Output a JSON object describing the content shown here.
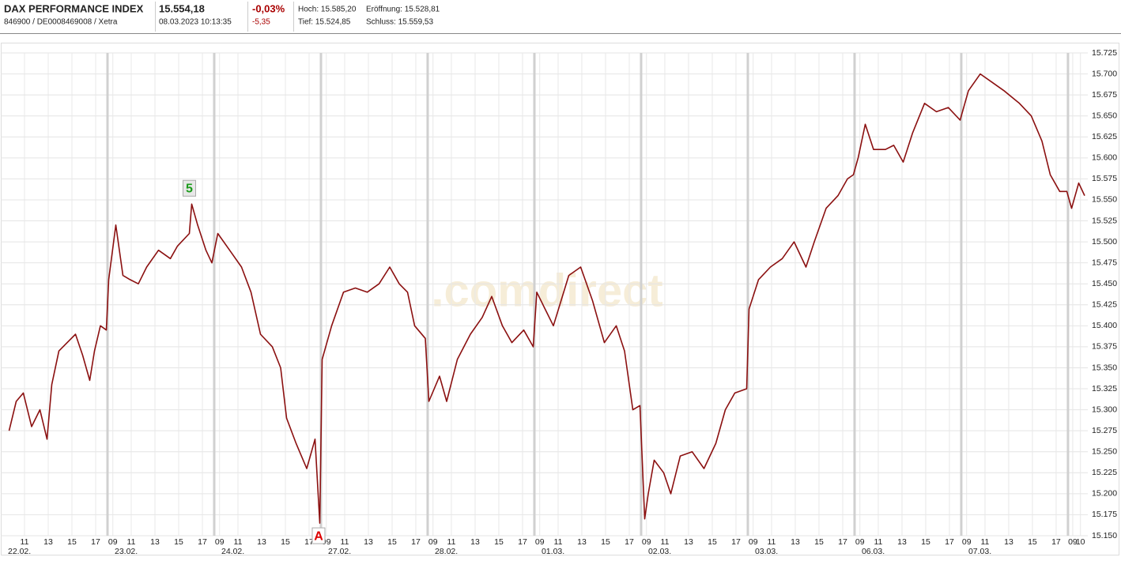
{
  "header": {
    "name": "DAX PERFORMANCE INDEX",
    "ids": "846900 / DE0008469008 / Xetra",
    "price": "15.554,18",
    "time": "08.03.2023 10:13:35",
    "change_pct": "-0,03%",
    "change_abs": "-5,35",
    "high": "Hoch: 15.585,20",
    "open": "Eröffnung: 15.528,81",
    "low": "Tief: 15.524,85",
    "close": "Schluss: 15.559,53"
  },
  "chart_data": {
    "type": "line",
    "watermark": ".comdirect",
    "color": "#8b1010",
    "x": [
      0.7,
      1.3,
      1.9,
      2.6,
      3.3,
      3.9,
      4.3,
      4.9,
      5.6,
      6.3,
      6.9,
      7.5,
      7.9,
      8.4,
      8.9,
      9.1,
      9.7,
      10.3,
      10.9,
      11.6,
      12.3,
      13.3,
      14.3,
      14.9,
      15.9,
      16.1,
      16.6,
      17.3,
      17.8,
      18.3,
      19.3,
      20.3,
      21.1,
      21.9,
      22.9,
      23.6,
      24.1,
      24.9,
      25.8,
      26.5,
      26.9,
      27.1,
      27.9,
      28.9,
      29.9,
      30.9,
      31.9,
      32.8,
      33.6,
      34.3,
      34.9,
      35.8,
      36.1,
      37,
      37.6,
      38.5,
      39.6,
      40.6,
      41.4,
      42.3,
      43.1,
      44.1,
      44.9,
      45.2,
      45.9,
      46.6,
      47.9,
      48.9,
      49.9,
      50.9,
      51.9,
      52.6,
      53.3,
      53.9,
      54.3,
      54.6,
      55.1,
      55.9,
      56.5,
      57.3,
      58.3,
      59.3,
      60.3,
      61.1,
      61.9,
      62.9,
      63.1,
      63.9,
      64.9,
      65.9,
      66.9,
      67.9,
      68.6,
      69.6,
      70.6,
      71.4,
      71.9,
      72.3,
      72.9,
      73.6,
      74.6,
      75.3,
      76.1,
      76.9,
      77.9,
      78.9,
      79.9,
      80.9,
      81.6,
      82.6,
      83.6,
      84.6,
      85.9,
      86.9,
      87.8,
      88.5,
      89.3,
      89.9,
      90.3,
      90.9,
      91.4
    ],
    "values": [
      15275,
      15310,
      15320,
      15280,
      15300,
      15265,
      15330,
      15370,
      15380,
      15390,
      15365,
      15335,
      15370,
      15400,
      15395,
      15455,
      15520,
      15460,
      15455,
      15450,
      15470,
      15490,
      15480,
      15495,
      15510,
      15545,
      15520,
      15490,
      15475,
      15510,
      15490,
      15470,
      15440,
      15390,
      15375,
      15350,
      15290,
      15260,
      15230,
      15265,
      15165,
      15360,
      15400,
      15440,
      15445,
      15440,
      15450,
      15470,
      15450,
      15440,
      15400,
      15385,
      15310,
      15340,
      15310,
      15360,
      15390,
      15410,
      15435,
      15400,
      15380,
      15395,
      15375,
      15440,
      15420,
      15400,
      15460,
      15470,
      15430,
      15380,
      15400,
      15370,
      15300,
      15305,
      15170,
      15200,
      15240,
      15225,
      15200,
      15245,
      15250,
      15230,
      15260,
      15300,
      15320,
      15325,
      15420,
      15455,
      15470,
      15480,
      15500,
      15470,
      15500,
      15540,
      15555,
      15575,
      15580,
      15600,
      15640,
      15610,
      15610,
      15615,
      15595,
      15630,
      15665,
      15655,
      15660,
      15645,
      15680,
      15700,
      15690,
      15680,
      15665,
      15650,
      15620,
      15580,
      15560,
      15560,
      15540,
      15570,
      15555
    ],
    "xlim": [
      0,
      91.67
    ],
    "ylim": [
      15150,
      15725
    ],
    "yticks": [
      {
        "value": 15150,
        "label": "15.150"
      },
      {
        "value": 15175,
        "label": "15.175"
      },
      {
        "value": 15200,
        "label": "15.200"
      },
      {
        "value": 15225,
        "label": "15.225"
      },
      {
        "value": 15250,
        "label": "15.250"
      },
      {
        "value": 15275,
        "label": "15.275"
      },
      {
        "value": 15300,
        "label": "15.300"
      },
      {
        "value": 15325,
        "label": "15.325"
      },
      {
        "value": 15350,
        "label": "15.350"
      },
      {
        "value": 15375,
        "label": "15.375"
      },
      {
        "value": 15400,
        "label": "15.400"
      },
      {
        "value": 15425,
        "label": "15.425"
      },
      {
        "value": 15450,
        "label": "15.450"
      },
      {
        "value": 15475,
        "label": "15.475"
      },
      {
        "value": 15500,
        "label": "15.500"
      },
      {
        "value": 15525,
        "label": "15.525"
      },
      {
        "value": 15550,
        "label": "15.550"
      },
      {
        "value": 15575,
        "label": "15.575"
      },
      {
        "value": 15600,
        "label": "15.600"
      },
      {
        "value": 15625,
        "label": "15.625"
      },
      {
        "value": 15650,
        "label": "15.650"
      },
      {
        "value": 15675,
        "label": "15.675"
      },
      {
        "value": 15700,
        "label": "15.700"
      },
      {
        "value": 15725,
        "label": "15.725"
      }
    ],
    "xticks": [
      {
        "value": 2,
        "label": "11"
      },
      {
        "value": 4,
        "label": "13"
      },
      {
        "value": 6,
        "label": "15"
      },
      {
        "value": 8,
        "label": "17"
      },
      {
        "value": 9.45,
        "label": "09"
      },
      {
        "value": 11,
        "label": "11"
      },
      {
        "value": 13,
        "label": "13"
      },
      {
        "value": 15,
        "label": "15"
      },
      {
        "value": 17,
        "label": "17"
      },
      {
        "value": 18.45,
        "label": "09"
      },
      {
        "value": 20,
        "label": "11"
      },
      {
        "value": 22,
        "label": "13"
      },
      {
        "value": 24,
        "label": "15"
      },
      {
        "value": 26,
        "label": "17"
      },
      {
        "value": 27.45,
        "label": "09"
      },
      {
        "value": 29,
        "label": "11"
      },
      {
        "value": 31,
        "label": "13"
      },
      {
        "value": 33,
        "label": "15"
      },
      {
        "value": 35,
        "label": "17"
      },
      {
        "value": 36.45,
        "label": "09"
      },
      {
        "value": 38,
        "label": "11"
      },
      {
        "value": 40,
        "label": "13"
      },
      {
        "value": 42,
        "label": "15"
      },
      {
        "value": 44,
        "label": "17"
      },
      {
        "value": 45.45,
        "label": "09"
      },
      {
        "value": 47,
        "label": "11"
      },
      {
        "value": 49,
        "label": "13"
      },
      {
        "value": 51,
        "label": "15"
      },
      {
        "value": 53,
        "label": "17"
      },
      {
        "value": 54.45,
        "label": "09"
      },
      {
        "value": 56,
        "label": "11"
      },
      {
        "value": 58,
        "label": "13"
      },
      {
        "value": 60,
        "label": "15"
      },
      {
        "value": 62,
        "label": "17"
      },
      {
        "value": 63.45,
        "label": "09"
      },
      {
        "value": 65,
        "label": "11"
      },
      {
        "value": 67,
        "label": "13"
      },
      {
        "value": 69,
        "label": "15"
      },
      {
        "value": 71,
        "label": "17"
      },
      {
        "value": 72.45,
        "label": "09"
      },
      {
        "value": 74,
        "label": "11"
      },
      {
        "value": 76,
        "label": "13"
      },
      {
        "value": 78,
        "label": "15"
      },
      {
        "value": 80,
        "label": "17"
      },
      {
        "value": 81.45,
        "label": "09"
      },
      {
        "value": 83,
        "label": "11"
      },
      {
        "value": 85,
        "label": "13"
      },
      {
        "value": 87,
        "label": "15"
      },
      {
        "value": 89,
        "label": "17"
      },
      {
        "value": 90.4,
        "label": "09"
      },
      {
        "value": 91.05,
        "label": "10"
      }
    ],
    "day_separators": [
      9,
      18,
      27,
      36,
      45,
      54,
      63,
      72,
      81,
      90
    ],
    "date_labels": [
      {
        "value": 0,
        "label": "22.02."
      },
      {
        "value": 9,
        "label": "23.02."
      },
      {
        "value": 18,
        "label": "24.02."
      },
      {
        "value": 27,
        "label": "27.02."
      },
      {
        "value": 36,
        "label": "28.02."
      },
      {
        "value": 45,
        "label": "01.03."
      },
      {
        "value": 54,
        "label": "02.03."
      },
      {
        "value": 63,
        "label": "03.03."
      },
      {
        "value": 72,
        "label": "06.03."
      },
      {
        "value": 81,
        "label": "07.03."
      }
    ],
    "annotations": [
      {
        "text": "5",
        "x": 15.9,
        "y": 15545
      },
      {
        "text": "A",
        "x": 26.8,
        "y": 15165
      }
    ],
    "grid": true
  }
}
